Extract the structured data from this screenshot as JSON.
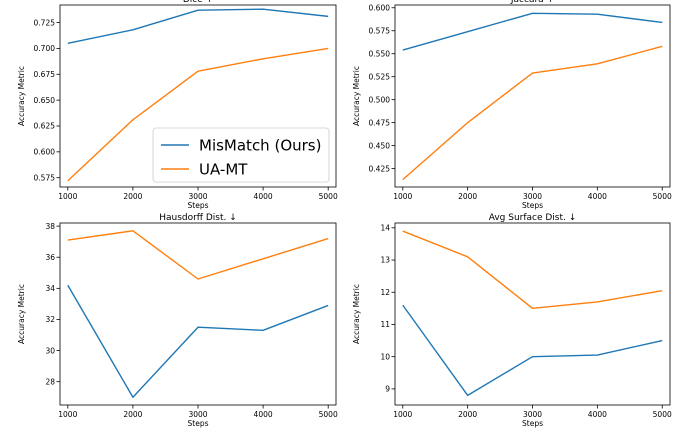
{
  "colors": {
    "mismatch": "#1f77b4",
    "uamt": "#ff7f0e"
  },
  "legend": {
    "placement": "lower-right of first panel",
    "entries": [
      {
        "label": "MisMatch (Ours)",
        "color": "#1f77b4"
      },
      {
        "label": "UA-MT",
        "color": "#ff7f0e"
      }
    ]
  },
  "chart_data": [
    {
      "type": "line",
      "title": "Dice ↑",
      "xlabel": "Steps",
      "ylabel": "Accuracy Metric",
      "x": [
        1000,
        2000,
        3000,
        4000,
        5000
      ],
      "xlim": [
        880,
        5120
      ],
      "ylim": [
        0.566,
        0.742
      ],
      "xticks": [
        1000,
        2000,
        3000,
        4000,
        5000
      ],
      "yticks": [
        0.575,
        0.6,
        0.625,
        0.65,
        0.675,
        0.7,
        0.725
      ],
      "ytick_labels": [
        "0.575",
        "0.600",
        "0.625",
        "0.650",
        "0.675",
        "0.700",
        "0.725"
      ],
      "series": [
        {
          "name": "MisMatch (Ours)",
          "color": "#1f77b4",
          "values": [
            0.705,
            0.718,
            0.737,
            0.738,
            0.731
          ]
        },
        {
          "name": "UA-MT",
          "color": "#ff7f0e",
          "values": [
            0.572,
            0.631,
            0.678,
            0.69,
            0.7
          ]
        }
      ],
      "grid": false
    },
    {
      "type": "line",
      "title": "Jaccard ↑",
      "xlabel": "Steps",
      "ylabel": "Accuracy Metric",
      "x": [
        1000,
        2000,
        3000,
        4000,
        5000
      ],
      "xlim": [
        880,
        5120
      ],
      "ylim": [
        0.405,
        0.603
      ],
      "xticks": [
        1000,
        2000,
        3000,
        4000,
        5000
      ],
      "yticks": [
        0.425,
        0.45,
        0.475,
        0.5,
        0.525,
        0.55,
        0.575,
        0.6
      ],
      "ytick_labels": [
        "0.425",
        "0.450",
        "0.475",
        "0.500",
        "0.525",
        "0.550",
        "0.575",
        "0.600"
      ],
      "series": [
        {
          "name": "MisMatch (Ours)",
          "color": "#1f77b4",
          "values": [
            0.554,
            0.574,
            0.594,
            0.593,
            0.584
          ]
        },
        {
          "name": "UA-MT",
          "color": "#ff7f0e",
          "values": [
            0.413,
            0.475,
            0.529,
            0.539,
            0.558
          ]
        }
      ],
      "grid": false
    },
    {
      "type": "line",
      "title": "Hausdorff Dist. ↓",
      "xlabel": "Steps",
      "ylabel": "Accuracy Metric",
      "x": [
        1000,
        2000,
        3000,
        4000,
        5000
      ],
      "xlim": [
        880,
        5120
      ],
      "ylim": [
        26.5,
        38.2
      ],
      "xticks": [
        1000,
        2000,
        3000,
        4000,
        5000
      ],
      "yticks": [
        28,
        30,
        32,
        34,
        36,
        38
      ],
      "ytick_labels": [
        "28",
        "30",
        "32",
        "34",
        "36",
        "38"
      ],
      "series": [
        {
          "name": "MisMatch (Ours)",
          "color": "#1f77b4",
          "values": [
            34.2,
            27.0,
            31.5,
            31.3,
            32.9
          ]
        },
        {
          "name": "UA-MT",
          "color": "#ff7f0e",
          "values": [
            37.1,
            37.7,
            34.6,
            35.9,
            37.2
          ]
        }
      ],
      "grid": false
    },
    {
      "type": "line",
      "title": "Avg Surface Dist. ↓",
      "xlabel": "Steps",
      "ylabel": "Accuracy Metric",
      "x": [
        1000,
        2000,
        3000,
        4000,
        5000
      ],
      "xlim": [
        880,
        5120
      ],
      "ylim": [
        8.5,
        14.15
      ],
      "xticks": [
        1000,
        2000,
        3000,
        4000,
        5000
      ],
      "yticks": [
        9,
        10,
        11,
        12,
        13,
        14
      ],
      "ytick_labels": [
        "9",
        "10",
        "11",
        "12",
        "13",
        "14"
      ],
      "series": [
        {
          "name": "MisMatch (Ours)",
          "color": "#1f77b4",
          "values": [
            11.6,
            8.8,
            10.0,
            10.05,
            10.5
          ]
        },
        {
          "name": "UA-MT",
          "color": "#ff7f0e",
          "values": [
            13.9,
            13.1,
            11.5,
            11.7,
            12.05
          ]
        }
      ],
      "grid": false
    }
  ]
}
